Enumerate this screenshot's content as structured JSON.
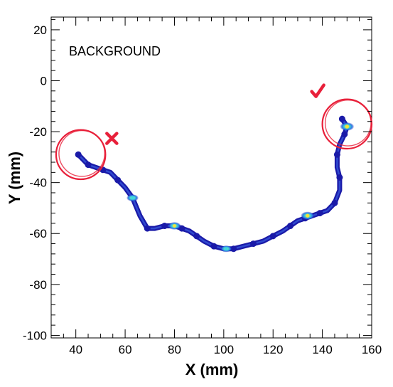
{
  "chart_data": {
    "type": "scatter",
    "title": "",
    "xlabel": "X (mm)",
    "ylabel": "Y (mm)",
    "xlim": [
      30,
      160
    ],
    "ylim": [
      -101,
      25
    ],
    "x_ticks": [
      40,
      60,
      80,
      100,
      120,
      140,
      160
    ],
    "y_ticks": [
      20,
      0,
      -20,
      -40,
      -60,
      -80,
      -100
    ],
    "grid": false,
    "annotation": "BACKGROUND",
    "series": [
      {
        "track": [
          [
            41,
            -29
          ],
          [
            43,
            -31
          ],
          [
            45,
            -33
          ],
          [
            48,
            -34
          ],
          [
            51,
            -35
          ],
          [
            54,
            -36
          ],
          [
            57,
            -39
          ],
          [
            60,
            -42
          ],
          [
            63,
            -46
          ],
          [
            66,
            -53
          ],
          [
            69,
            -58
          ],
          [
            72,
            -58
          ],
          [
            76,
            -57
          ],
          [
            80,
            -57
          ],
          [
            83,
            -58
          ],
          [
            86,
            -59
          ],
          [
            89,
            -61
          ],
          [
            92,
            -63
          ],
          [
            96,
            -65
          ],
          [
            100,
            -66
          ],
          [
            104,
            -66
          ],
          [
            108,
            -65
          ],
          [
            112,
            -64
          ],
          [
            116,
            -63
          ],
          [
            120,
            -61
          ],
          [
            124,
            -59
          ],
          [
            127,
            -57
          ],
          [
            130,
            -55
          ],
          [
            133,
            -54
          ],
          [
            136,
            -53
          ],
          [
            139,
            -52
          ],
          [
            142,
            -51
          ],
          [
            145,
            -48
          ],
          [
            147,
            -43
          ],
          [
            147,
            -38
          ],
          [
            146,
            -34
          ],
          [
            146,
            -29
          ],
          [
            147,
            -25
          ],
          [
            149,
            -21
          ],
          [
            150,
            -18
          ],
          [
            148,
            -15
          ]
        ],
        "hotspots": [
          {
            "x": 63,
            "y": -46,
            "value": 0.5
          },
          {
            "x": 80,
            "y": -57,
            "value": 0.75
          },
          {
            "x": 101,
            "y": -66,
            "value": 0.4
          },
          {
            "x": 134,
            "y": -53,
            "value": 0.9
          },
          {
            "x": 150,
            "y": -18,
            "value": 1.0
          }
        ]
      }
    ],
    "markers": [
      {
        "type": "circle",
        "x": 42,
        "y": -29,
        "radius": 10,
        "color": "#e8203a",
        "symbol": "cross"
      },
      {
        "type": "circle",
        "x": 150,
        "y": -17,
        "radius": 10,
        "color": "#e8203a",
        "symbol": "check"
      }
    ],
    "colors": {
      "track": "#1a1aa8",
      "track_light": "#3b5fe0",
      "hot_mid": "#39d6e8",
      "hot_high": "#f5e23a",
      "marker": "#e8203a"
    }
  }
}
